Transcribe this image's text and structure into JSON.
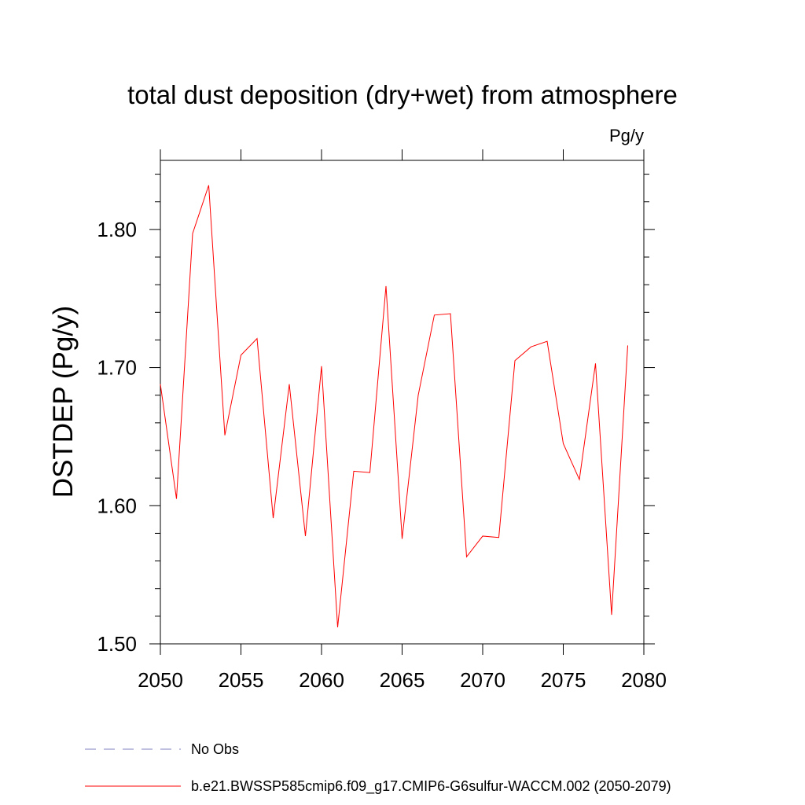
{
  "chart_data": {
    "type": "line",
    "title": "total dust deposition (dry+wet) from atmosphere",
    "units": "Pg/y",
    "ylabel": "DSTDEP  (Pg/y)",
    "xlabel": "",
    "xlim": [
      2050,
      2080
    ],
    "ylim": [
      1.5,
      1.85
    ],
    "x_ticks": [
      2050,
      2055,
      2060,
      2065,
      2070,
      2075,
      2080
    ],
    "x_tick_labels": [
      "2050",
      "2055",
      "2060",
      "2065",
      "2070",
      "2075",
      "2080"
    ],
    "y_ticks": [
      1.5,
      1.6,
      1.7,
      1.8
    ],
    "y_tick_labels": [
      "1.50",
      "1.60",
      "1.70",
      "1.80"
    ],
    "grid": false,
    "legend_position": "bottom",
    "series": [
      {
        "name": "b.e21.BWSSP585cmip6.f09_g17.CMIP6-G6sulfur-WACCM.002 (2050-2079)",
        "color": "#ff0000",
        "style": "solid",
        "x": [
          2050,
          2051,
          2052,
          2053,
          2054,
          2055,
          2056,
          2057,
          2058,
          2059,
          2060,
          2061,
          2062,
          2063,
          2064,
          2065,
          2066,
          2067,
          2068,
          2069,
          2070,
          2071,
          2072,
          2073,
          2074,
          2075,
          2076,
          2077,
          2078,
          2079
        ],
        "values": [
          1.688,
          1.605,
          1.797,
          1.832,
          1.651,
          1.709,
          1.721,
          1.591,
          1.688,
          1.578,
          1.701,
          1.512,
          1.625,
          1.624,
          1.759,
          1.576,
          1.68,
          1.738,
          1.739,
          1.563,
          1.578,
          1.577,
          1.705,
          1.715,
          1.719,
          1.645,
          1.619,
          1.703,
          1.521,
          1.716
        ]
      }
    ],
    "legend": [
      {
        "label": "No Obs",
        "color": "#7f7fbf",
        "style": "dashed"
      },
      {
        "label": "b.e21.BWSSP585cmip6.f09_g17.CMIP6-G6sulfur-WACCM.002 (2050-2079)",
        "color": "#ff0000",
        "style": "solid"
      }
    ]
  }
}
